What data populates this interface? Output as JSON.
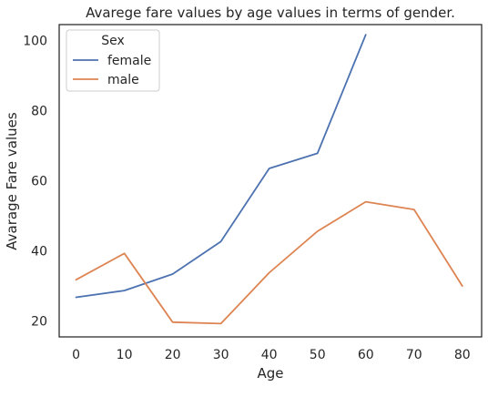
{
  "chart_data": {
    "type": "line",
    "title": "Avarege fare values by age values in terms of gender.",
    "xlabel": "Age",
    "ylabel": "Avarage Fare values",
    "x": [
      0,
      10,
      20,
      30,
      40,
      50,
      60,
      70,
      80
    ],
    "xticks": [
      "0",
      "10",
      "20",
      "30",
      "40",
      "50",
      "60",
      "70",
      "80"
    ],
    "yticks": [
      "20",
      "40",
      "60",
      "80",
      "100"
    ],
    "xlim": [
      -3.5,
      84
    ],
    "ylim": [
      15.5,
      104.5
    ],
    "grid": false,
    "legend": {
      "title": "Sex",
      "placement": "upper-left"
    },
    "series": [
      {
        "name": "female",
        "color": "#4c72b0",
        "x": [
          0,
          10,
          20,
          30,
          40,
          50,
          60
        ],
        "values": [
          26.8,
          28.7,
          33.4,
          42.7,
          63.5,
          67.8,
          101.6
        ]
      },
      {
        "name": "male",
        "color": "#dd8452",
        "x": [
          0,
          10,
          20,
          30,
          40,
          50,
          60,
          70,
          80
        ],
        "values": [
          31.8,
          39.3,
          19.7,
          19.3,
          33.8,
          45.6,
          54.0,
          51.8,
          30.0
        ]
      }
    ]
  }
}
